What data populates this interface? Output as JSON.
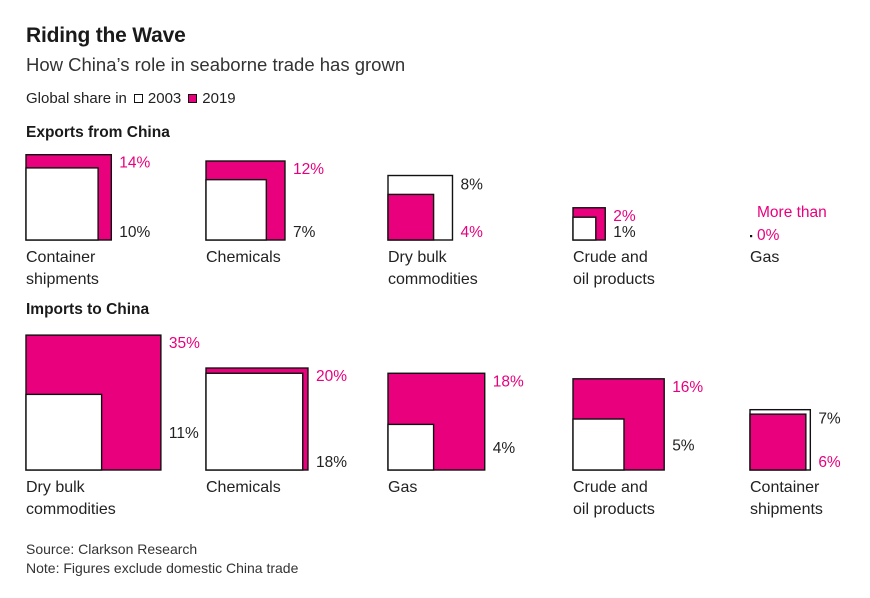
{
  "header": {
    "title": "Riding the Wave",
    "subtitle": "How China’s role in seaborne trade has grown",
    "legend_prefix": "Global share in",
    "legend_2003": "2003",
    "legend_2019": "2019"
  },
  "colors": {
    "y2019": "#e8007d",
    "y2003": "#ffffff",
    "stroke": "#111111"
  },
  "chart_data": [
    {
      "type": "square-area",
      "title": "Exports from China",
      "series": [
        "2003",
        "2019"
      ],
      "items": [
        {
          "category": [
            "Container",
            "shipments"
          ],
          "y2003": 10,
          "y2019": 14,
          "label_2003": "10%",
          "label_2019": "14%"
        },
        {
          "category": [
            "Chemicals"
          ],
          "y2003": 7,
          "y2019": 12,
          "label_2003": "7%",
          "label_2019": "12%"
        },
        {
          "category": [
            "Dry bulk",
            "commodities"
          ],
          "y2003": 8,
          "y2019": 4,
          "label_2003": "8%",
          "label_2019": "4%"
        },
        {
          "category": [
            "Crude and",
            "oil products"
          ],
          "y2003": 1,
          "y2019": 2,
          "label_2003": "1%",
          "label_2019": "2%"
        },
        {
          "category": [
            "Gas"
          ],
          "y2003": 0,
          "y2019": 0,
          "label_2003": "",
          "label_2019": [
            "More than",
            "0%"
          ]
        }
      ]
    },
    {
      "type": "square-area",
      "title": "Imports to China",
      "series": [
        "2003",
        "2019"
      ],
      "items": [
        {
          "category": [
            "Dry bulk",
            "commodities"
          ],
          "y2003": 11,
          "y2019": 35,
          "label_2003": "11%",
          "label_2019": "35%"
        },
        {
          "category": [
            "Chemicals"
          ],
          "y2003": 18,
          "y2019": 20,
          "label_2003": "18%",
          "label_2019": "20%"
        },
        {
          "category": [
            "Gas"
          ],
          "y2003": 4,
          "y2019": 18,
          "label_2003": "4%",
          "label_2019": "18%"
        },
        {
          "category": [
            "Crude and",
            "oil products"
          ],
          "y2003": 5,
          "y2019": 16,
          "label_2003": "5%",
          "label_2019": "16%"
        },
        {
          "category": [
            "Container",
            "shipments"
          ],
          "y2003": 7,
          "y2019": 6,
          "label_2003": "7%",
          "label_2019": "6%"
        }
      ]
    }
  ],
  "footer": {
    "source": "Source: Clarkson Research",
    "note": "Note: Figures exclude domestic China trade"
  }
}
